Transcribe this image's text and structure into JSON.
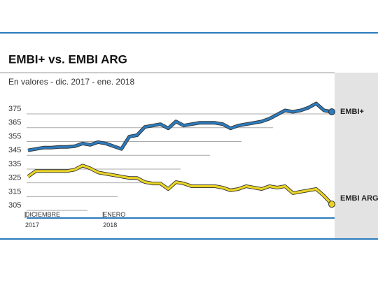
{
  "chart_data": {
    "type": "line",
    "title": "EMBI+ vs. EMBI ARG",
    "subtitle": "En valores - dic. 2017 -  ene. 2018",
    "categories": [
      "DICIEMBRE 2017",
      null,
      null,
      null,
      null,
      null,
      null,
      null,
      null,
      null,
      "ENERO 2018",
      null,
      null,
      null,
      null,
      null,
      null,
      null,
      null,
      null,
      null,
      null,
      null,
      null,
      null,
      null,
      null,
      null,
      null,
      null,
      null,
      null,
      null,
      null,
      null,
      null,
      null,
      null,
      null,
      null
    ],
    "series": [
      {
        "name": "EMBI+",
        "color": "#2b7bbd",
        "values": [
          345,
          346,
          347,
          347,
          347.5,
          347.5,
          348,
          350,
          349,
          351,
          350,
          348,
          346,
          355,
          356,
          362,
          363,
          364,
          361,
          366,
          363,
          364,
          365,
          365,
          365,
          364,
          361,
          363,
          364,
          365,
          366,
          368,
          371,
          374,
          373,
          374,
          376,
          379,
          374,
          373
        ]
      },
      {
        "name": "EMBI ARG.",
        "color": "#e9d424",
        "values": [
          326,
          330,
          330,
          330,
          330,
          330,
          331,
          334,
          332,
          329,
          328,
          327,
          326,
          325,
          325,
          322,
          321,
          321,
          317,
          322,
          321,
          319,
          319,
          319,
          319,
          318,
          316,
          317,
          319,
          318,
          317,
          319,
          318,
          319,
          314,
          315,
          316,
          317,
          312,
          306
        ]
      }
    ],
    "ylim": [
      300,
      385
    ],
    "yticks": [
      305,
      315,
      325,
      335,
      345,
      355,
      365,
      375
    ],
    "grid": true
  }
}
